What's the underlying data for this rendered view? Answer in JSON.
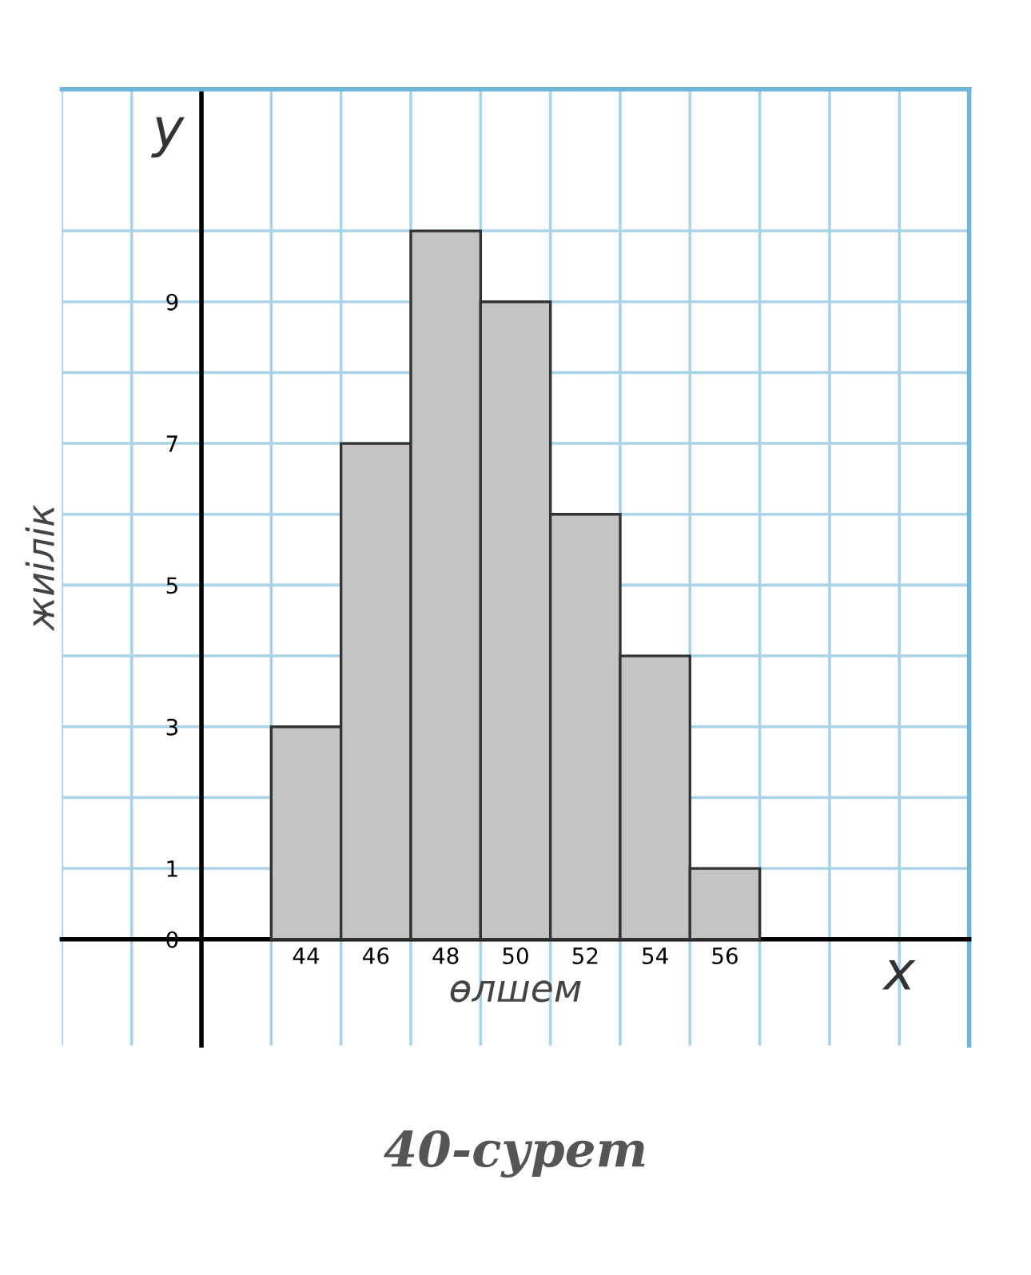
{
  "chart_data": {
    "type": "bar",
    "xlabel": "өлшем",
    "ylabel": "жиілік",
    "categories": [
      "44",
      "46",
      "48",
      "50",
      "52",
      "54",
      "56"
    ],
    "values": [
      3,
      7,
      10,
      9,
      6,
      4,
      1
    ],
    "color": "#c4c4c4",
    "ylim": [
      -1.5,
      12
    ],
    "yticks": [
      0,
      {
        "value": 1,
        "label": "1"
      },
      {
        "value": 2,
        "label": null
      },
      3,
      {
        "value": 4,
        "label": null
      },
      5,
      {
        "value": 6,
        "label": null
      },
      7,
      {
        "value": 8,
        "label": null
      },
      9,
      {
        "value": 10,
        "label": null
      }
    ],
    "grid": true,
    "annotations": [
      "y",
      "x",
      "40-сурет"
    ]
  }
}
